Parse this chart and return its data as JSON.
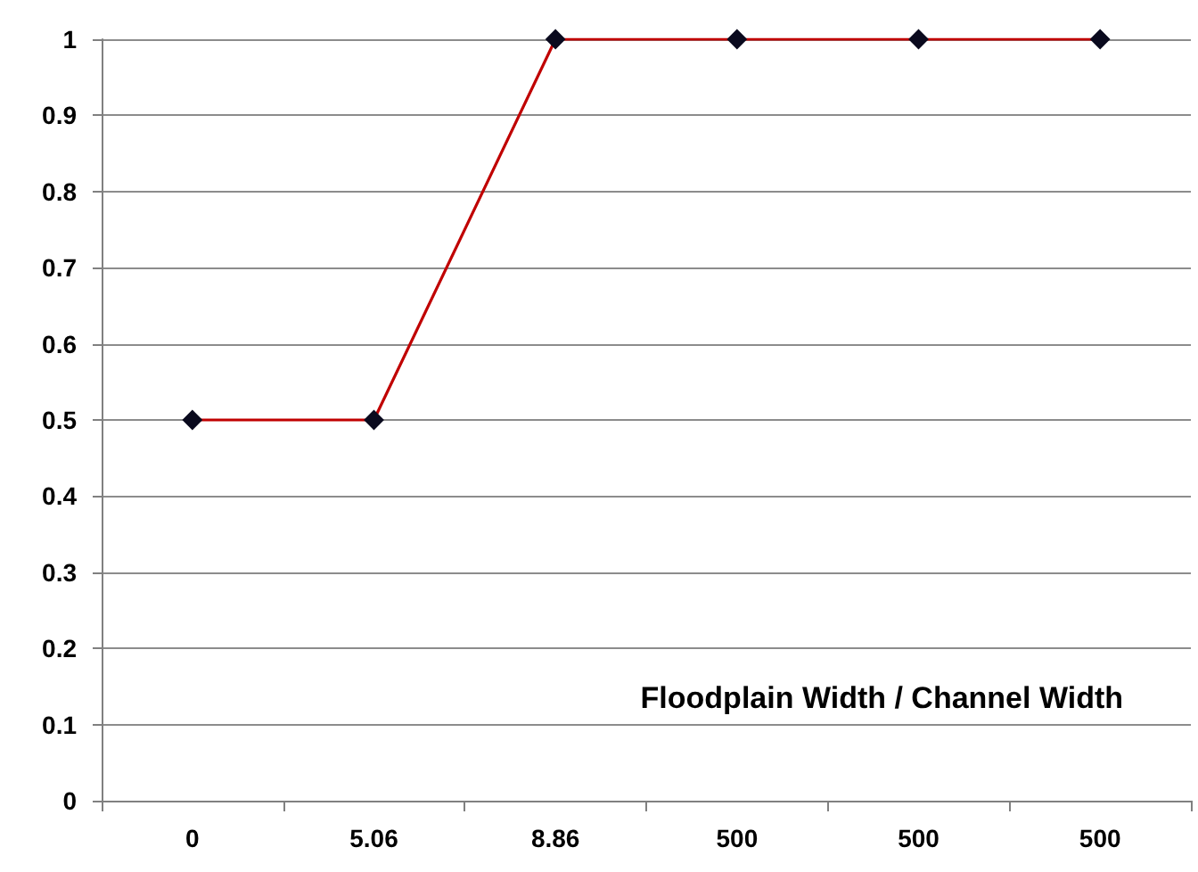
{
  "chart_data": {
    "type": "line",
    "xlabel": "Floodplain Width / Channel Width",
    "categories": [
      "0",
      "5.06",
      "8.86",
      "500",
      "500",
      "500"
    ],
    "series": [
      {
        "color": "#c00000",
        "values": [
          0.5,
          0.5,
          1,
          1,
          1,
          1
        ]
      }
    ],
    "ylim": [
      0,
      1
    ],
    "yticks": [
      0,
      0.1,
      0.2,
      0.3,
      0.4,
      0.5,
      0.6,
      0.7,
      0.8,
      0.9,
      1
    ],
    "grid": "y",
    "marker": "diamond",
    "line_style": "solid"
  }
}
